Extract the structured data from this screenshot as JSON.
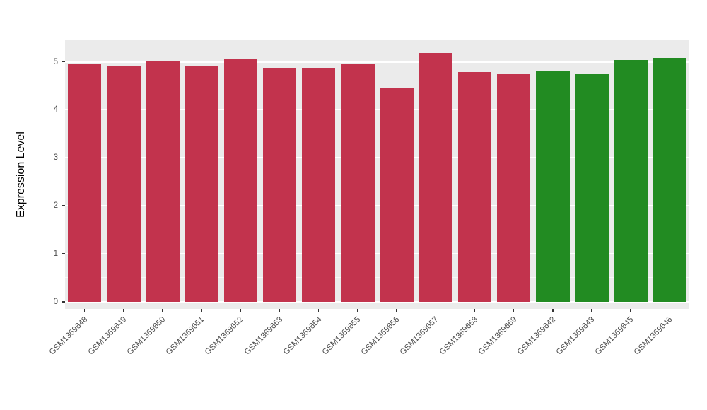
{
  "theme": {
    "background": "#FFFFFF",
    "panel_bg": "#EBEBEB",
    "grid_color": "#FFFFFF",
    "tick_text_color": "#4D4D4D",
    "axis_title_color": "#000000"
  },
  "chart_data": {
    "type": "bar",
    "title": "",
    "xlabel": "",
    "ylabel": "Expression Level",
    "ylim": [
      0,
      5
    ],
    "yticks": [
      0,
      1,
      2,
      3,
      4,
      5
    ],
    "grid": "white major and minor horizontal gridlines on gray panel",
    "legend": "none",
    "categories": [
      "GSM1369648",
      "GSM1369649",
      "GSM1369650",
      "GSM1369651",
      "GSM1369652",
      "GSM1369653",
      "GSM1369654",
      "GSM1369655",
      "GSM1369656",
      "GSM1369657",
      "GSM1369658",
      "GSM1369659",
      "GSM1369642",
      "GSM1369643",
      "GSM1369645",
      "GSM1369646"
    ],
    "values": [
      4.97,
      4.9,
      5.01,
      4.9,
      5.06,
      4.87,
      4.88,
      4.96,
      4.46,
      5.19,
      4.79,
      4.76,
      4.82,
      4.76,
      5.04,
      5.08
    ],
    "groups": [
      "red",
      "red",
      "red",
      "red",
      "red",
      "red",
      "red",
      "red",
      "red",
      "red",
      "red",
      "red",
      "green",
      "green",
      "green",
      "green"
    ],
    "palette": {
      "red": "#C2334D",
      "green": "#228B22"
    }
  }
}
